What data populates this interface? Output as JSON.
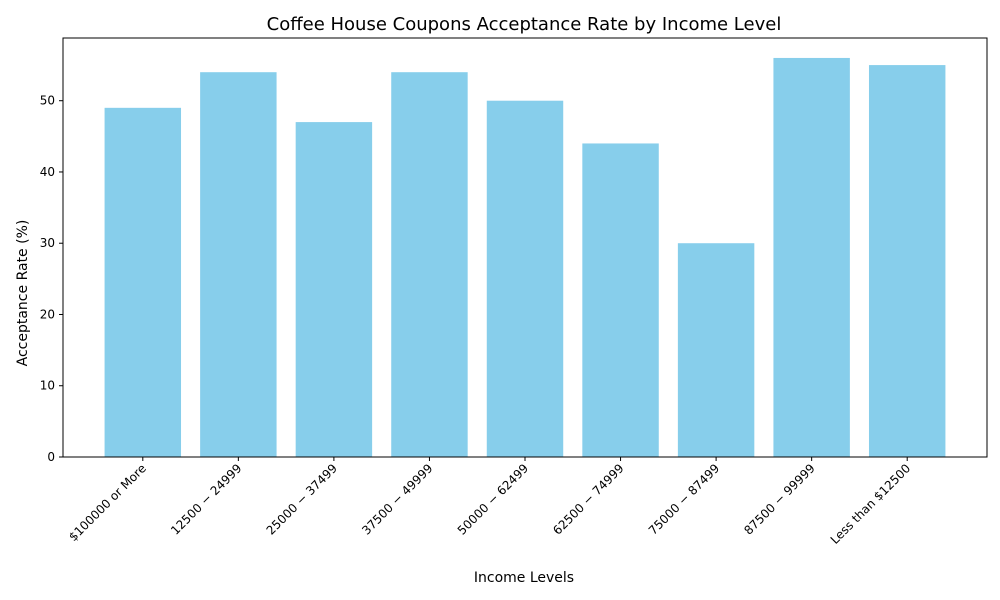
{
  "chart_data": {
    "type": "bar",
    "title": "Coffee House Coupons Acceptance Rate by Income Level",
    "xlabel": "Income Levels",
    "ylabel": "Acceptance Rate (%)",
    "categories": [
      "$100000 or More",
      "$12500 - $24999",
      "$25000 - $37499",
      "$37500 - $49999",
      "$50000 - $62499",
      "$62500 - $74999",
      "$75000 - $87499",
      "$87500 - $99999",
      "Less than $12500"
    ],
    "tick_labels": [
      "$100000 or More",
      "12500 − 24999",
      "25000 − 37499",
      "37500 − 49999",
      "50000 − 62499",
      "62500 − 74999",
      "75000 − 87499",
      "87500 − 99999",
      "Less than $12500"
    ],
    "values": [
      49,
      54,
      47,
      54,
      50,
      44,
      30,
      56,
      55
    ],
    "ylim": [
      0,
      58.8
    ],
    "yticks": [
      0,
      10,
      20,
      30,
      40,
      50
    ],
    "grid": false,
    "bar_color": "#87ceeb"
  }
}
